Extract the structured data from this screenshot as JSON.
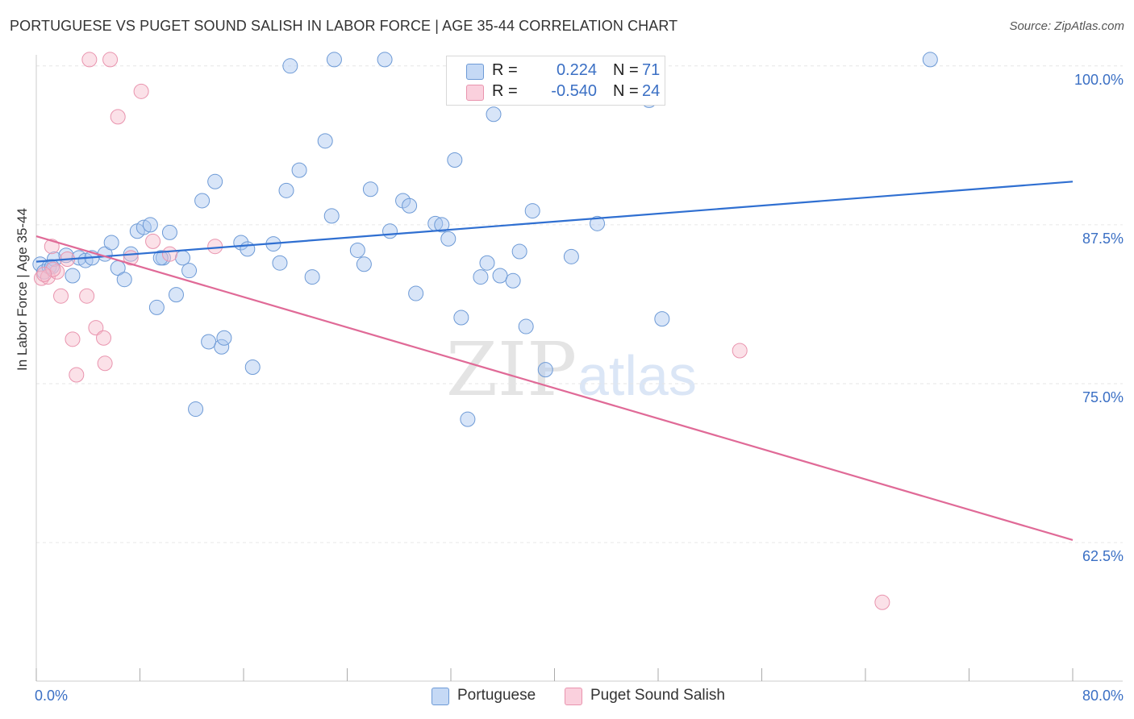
{
  "title": "PORTUGUESE VS PUGET SOUND SALISH IN LABOR FORCE | AGE 35-44 CORRELATION CHART",
  "source": "Source: ZipAtlas.com",
  "watermark": {
    "zip": "ZIP",
    "atlas": "atlas"
  },
  "legend": {
    "rows": [
      {
        "r_label": "R =",
        "r_value": "0.224",
        "n_label": "N =",
        "n_value": "71",
        "color": "#a9c6f0"
      },
      {
        "r_label": "R =",
        "r_value": "-0.540",
        "n_label": "N =",
        "n_value": "24",
        "color": "#f6bccd"
      }
    ]
  },
  "bottom_legend": [
    "Portuguese",
    "Puget Sound Salish"
  ],
  "colors": {
    "blue_fill": "#a9c6f0",
    "blue_stroke": "#6d9ad6",
    "blue_line": "#2f6fd1",
    "pink_fill": "#f6bccd",
    "pink_stroke": "#e994ae",
    "pink_line": "#e06a97",
    "axis_text": "#3a6fc4",
    "grid": "#e6e6e6"
  },
  "chart_data": {
    "type": "scatter",
    "title": "PORTUGUESE VS PUGET SOUND SALISH IN LABOR FORCE | AGE 35-44 CORRELATION CHART",
    "xlabel": "",
    "ylabel": "In Labor Force | Age 35-44",
    "xlim": [
      0,
      80
    ],
    "ylim": [
      51.6,
      101.7
    ],
    "x_tick_labels": [
      "0.0%",
      "80.0%"
    ],
    "y_ticks": [
      100.0,
      87.5,
      75.0,
      62.5
    ],
    "y_tick_labels": [
      "100.0%",
      "87.5%",
      "75.0%",
      "62.5%"
    ],
    "grid": true,
    "legend_position": "top-center",
    "series": [
      {
        "name": "Portuguese",
        "color": "#a9c6f0",
        "trend": {
          "x": [
            0,
            80
          ],
          "y": [
            84.6,
            90.9
          ]
        },
        "points": [
          [
            0.3,
            84.4
          ],
          [
            0.6,
            83.8
          ],
          [
            1.0,
            84.2
          ],
          [
            1.4,
            84.8
          ],
          [
            2.3,
            85.1
          ],
          [
            2.8,
            83.5
          ],
          [
            3.3,
            84.9
          ],
          [
            3.8,
            84.7
          ],
          [
            4.3,
            84.9
          ],
          [
            5.3,
            85.2
          ],
          [
            5.8,
            86.1
          ],
          [
            6.3,
            84.1
          ],
          [
            6.8,
            83.2
          ],
          [
            7.3,
            85.2
          ],
          [
            7.8,
            87.0
          ],
          [
            8.3,
            87.3
          ],
          [
            8.8,
            87.5
          ],
          [
            9.3,
            81.0
          ],
          [
            9.8,
            84.9
          ],
          [
            10.3,
            86.9
          ],
          [
            10.8,
            82.0
          ],
          [
            11.3,
            84.9
          ],
          [
            11.8,
            83.9
          ],
          [
            12.3,
            73.0
          ],
          [
            12.8,
            89.4
          ],
          [
            13.3,
            78.3
          ],
          [
            13.8,
            90.9
          ],
          [
            14.3,
            77.9
          ],
          [
            14.5,
            78.6
          ],
          [
            15.8,
            86.1
          ],
          [
            16.3,
            85.6
          ],
          [
            16.7,
            76.3
          ],
          [
            18.3,
            86.0
          ],
          [
            18.8,
            84.5
          ],
          [
            19.3,
            90.2
          ],
          [
            19.6,
            100.0
          ],
          [
            20.3,
            91.8
          ],
          [
            21.3,
            83.4
          ],
          [
            22.3,
            94.1
          ],
          [
            22.8,
            88.2
          ],
          [
            23.0,
            100.5
          ],
          [
            24.8,
            85.5
          ],
          [
            25.3,
            84.4
          ],
          [
            25.8,
            90.3
          ],
          [
            26.9,
            100.5
          ],
          [
            27.3,
            87.0
          ],
          [
            28.3,
            89.4
          ],
          [
            28.8,
            89.0
          ],
          [
            29.3,
            82.1
          ],
          [
            30.8,
            87.6
          ],
          [
            31.3,
            87.5
          ],
          [
            31.8,
            86.4
          ],
          [
            32.3,
            92.6
          ],
          [
            32.8,
            80.2
          ],
          [
            33.3,
            72.2
          ],
          [
            34.3,
            83.4
          ],
          [
            34.8,
            84.5
          ],
          [
            35.3,
            96.2
          ],
          [
            35.8,
            83.5
          ],
          [
            36.8,
            83.1
          ],
          [
            37.3,
            85.4
          ],
          [
            37.8,
            79.5
          ],
          [
            38.3,
            88.6
          ],
          [
            39.3,
            76.1
          ],
          [
            41.3,
            85.0
          ],
          [
            43.3,
            87.6
          ],
          [
            47.3,
            97.3
          ],
          [
            48.3,
            80.1
          ],
          [
            69.0,
            100.5
          ],
          [
            9.6,
            84.9
          ],
          [
            1.2,
            84.2
          ]
        ]
      },
      {
        "name": "Puget Sound Salish",
        "color": "#f6bccd",
        "trend": {
          "x": [
            0,
            80
          ],
          "y": [
            86.6,
            62.7
          ]
        },
        "points": [
          [
            0.4,
            83.3
          ],
          [
            0.9,
            83.4
          ],
          [
            1.2,
            85.8
          ],
          [
            1.6,
            83.8
          ],
          [
            1.9,
            81.9
          ],
          [
            2.4,
            84.8
          ],
          [
            2.8,
            78.5
          ],
          [
            3.1,
            75.7
          ],
          [
            3.9,
            81.9
          ],
          [
            4.1,
            100.5
          ],
          [
            4.6,
            79.4
          ],
          [
            5.2,
            78.6
          ],
          [
            5.3,
            76.6
          ],
          [
            5.7,
            100.5
          ],
          [
            6.3,
            96.0
          ],
          [
            7.3,
            84.9
          ],
          [
            8.1,
            98.0
          ],
          [
            9.0,
            86.2
          ],
          [
            10.3,
            85.2
          ],
          [
            13.8,
            85.8
          ],
          [
            54.3,
            77.6
          ],
          [
            65.3,
            57.8
          ],
          [
            1.3,
            84.0
          ],
          [
            0.6,
            83.6
          ]
        ]
      }
    ]
  }
}
